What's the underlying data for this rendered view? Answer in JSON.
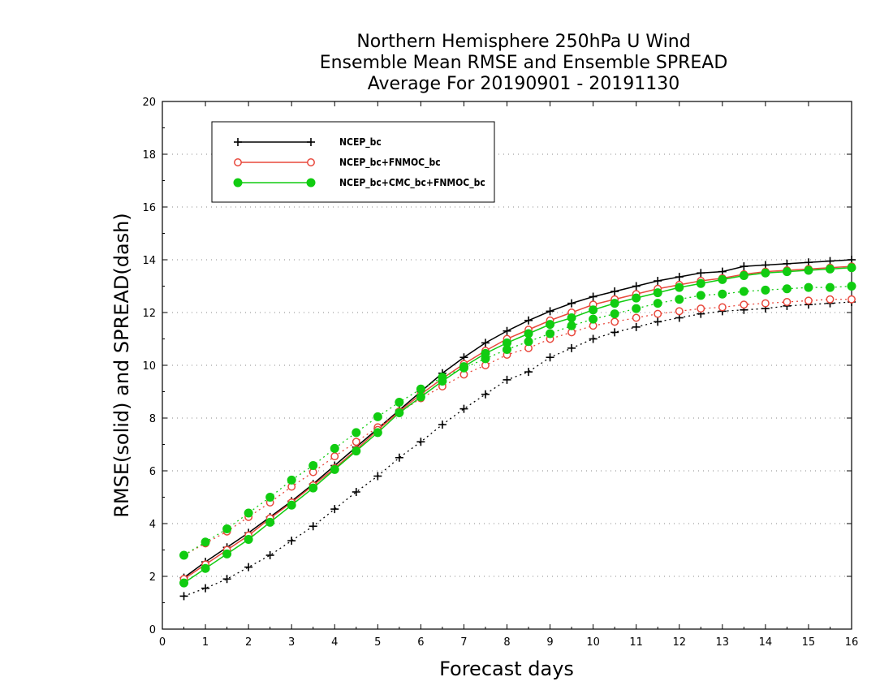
{
  "chart_data": {
    "type": "line",
    "title_lines": [
      "Northern Hemisphere 250hPa U Wind",
      "Ensemble Mean RMSE and Ensemble SPREAD",
      "Average For 20190901 - 20191130"
    ],
    "xlabel": "Forecast days",
    "ylabel": "RMSE(solid) and SPREAD(dash)",
    "xlim": [
      0,
      16
    ],
    "ylim": [
      0,
      20
    ],
    "x_ticks": [
      "0",
      "1",
      "2",
      "3",
      "4",
      "5",
      "6",
      "7",
      "8",
      "9",
      "10",
      "11",
      "12",
      "13",
      "14",
      "15",
      "16"
    ],
    "y_ticks": [
      "0",
      "2",
      "4",
      "6",
      "8",
      "10",
      "12",
      "14",
      "16",
      "18",
      "20"
    ],
    "grid": "horizontal dotted",
    "legend_position": "top-left",
    "x": [
      0.5,
      1,
      1.5,
      2,
      2.5,
      3,
      3.5,
      4,
      4.5,
      5,
      5.5,
      6,
      6.5,
      7,
      7.5,
      8,
      8.5,
      9,
      9.5,
      10,
      10.5,
      11,
      11.5,
      12,
      12.5,
      13,
      13.5,
      14,
      14.5,
      15,
      15.5,
      16
    ],
    "series": [
      {
        "name": "NCEP_bc",
        "color": "#000000",
        "marker": "plus",
        "rmse": [
          1.95,
          2.55,
          3.1,
          3.65,
          4.25,
          4.85,
          5.5,
          6.2,
          6.9,
          7.6,
          8.3,
          9.0,
          9.7,
          10.3,
          10.85,
          11.3,
          11.7,
          12.05,
          12.35,
          12.6,
          12.8,
          13.0,
          13.2,
          13.35,
          13.5,
          13.55,
          13.75,
          13.8,
          13.85,
          13.9,
          13.95,
          14.0
        ],
        "spread": [
          1.25,
          1.55,
          1.9,
          2.35,
          2.8,
          3.35,
          3.9,
          4.55,
          5.2,
          5.8,
          6.5,
          7.1,
          7.75,
          8.35,
          8.9,
          9.45,
          9.75,
          10.3,
          10.65,
          11.0,
          11.25,
          11.45,
          11.65,
          11.8,
          11.95,
          12.05,
          12.1,
          12.15,
          12.25,
          12.3,
          12.35,
          12.4
        ]
      },
      {
        "name": "NCEP_bc+FNMOC_bc",
        "color": "#e8483c",
        "marker": "open-circle",
        "rmse": [
          1.9,
          2.45,
          3.0,
          3.55,
          4.2,
          4.8,
          5.45,
          6.1,
          6.8,
          7.55,
          8.25,
          8.9,
          9.5,
          10.05,
          10.55,
          11.0,
          11.35,
          11.7,
          12.0,
          12.3,
          12.5,
          12.7,
          12.9,
          13.05,
          13.2,
          13.3,
          13.45,
          13.55,
          13.6,
          13.65,
          13.7,
          13.75
        ],
        "spread": [
          2.8,
          3.25,
          3.7,
          4.25,
          4.8,
          5.4,
          5.95,
          6.55,
          7.1,
          7.65,
          8.2,
          8.75,
          9.2,
          9.65,
          10.0,
          10.4,
          10.65,
          11.0,
          11.25,
          11.5,
          11.65,
          11.8,
          11.95,
          12.05,
          12.15,
          12.2,
          12.3,
          12.35,
          12.4,
          12.45,
          12.5,
          12.5
        ]
      },
      {
        "name": "NCEP_bc+CMC_bc+FNMOC_bc",
        "color": "#11cc11",
        "marker": "filled-circle",
        "rmse": [
          1.75,
          2.3,
          2.85,
          3.4,
          4.05,
          4.7,
          5.35,
          6.05,
          6.75,
          7.45,
          8.2,
          8.8,
          9.4,
          9.95,
          10.45,
          10.85,
          11.2,
          11.55,
          11.8,
          12.1,
          12.35,
          12.55,
          12.75,
          12.95,
          13.1,
          13.25,
          13.4,
          13.5,
          13.55,
          13.6,
          13.65,
          13.7
        ],
        "spread": [
          2.8,
          3.3,
          3.8,
          4.4,
          5.0,
          5.65,
          6.2,
          6.85,
          7.45,
          8.05,
          8.6,
          9.1,
          9.55,
          9.9,
          10.25,
          10.6,
          10.9,
          11.2,
          11.5,
          11.75,
          11.95,
          12.15,
          12.35,
          12.5,
          12.65,
          12.7,
          12.8,
          12.85,
          12.9,
          12.95,
          12.95,
          13.0
        ]
      }
    ]
  }
}
